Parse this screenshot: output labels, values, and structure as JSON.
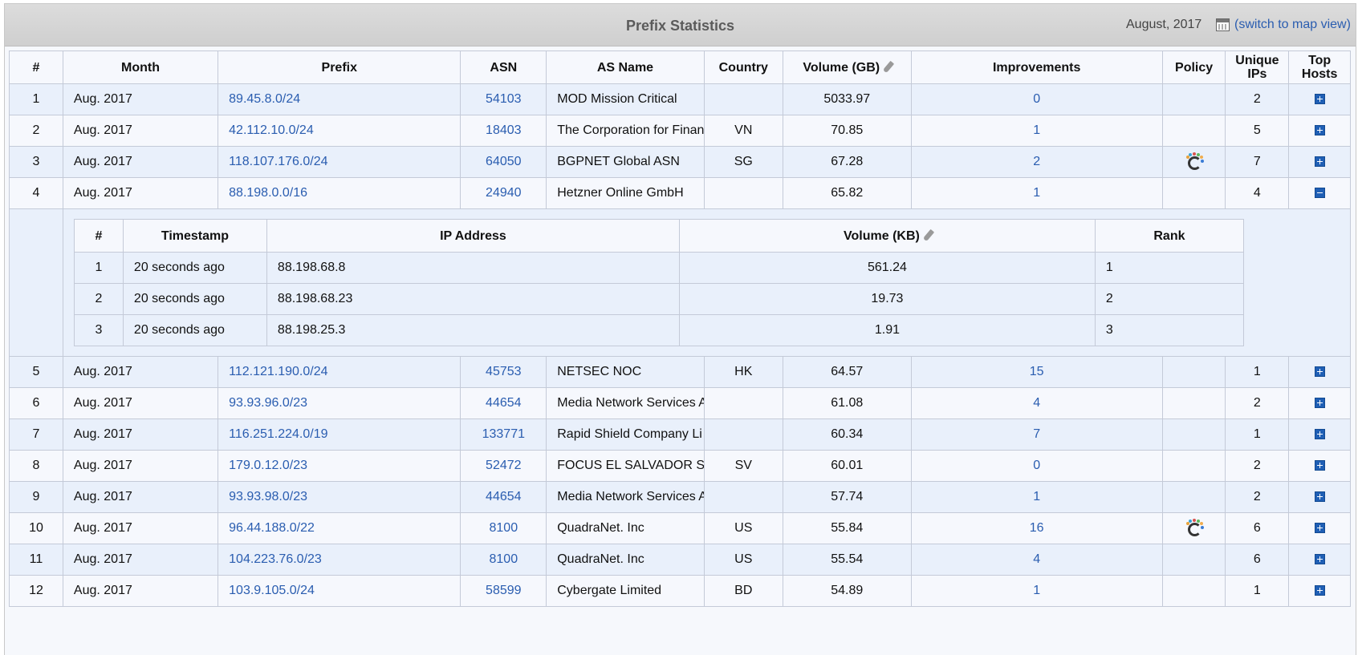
{
  "header": {
    "title": "Prefix Statistics",
    "date": "August, 2017",
    "map_link": "(switch to map view)",
    "calendar_icon": "calendar-icon"
  },
  "columns": {
    "num": "#",
    "month": "Month",
    "prefix": "Prefix",
    "asn": "ASN",
    "as_name": "AS Name",
    "country": "Country",
    "volume": "Volume (GB)",
    "improvements": "Improvements",
    "policy": "Policy",
    "unique_ips_1": "Unique",
    "unique_ips_2": "IPs",
    "top_hosts_1": "Top",
    "top_hosts_2": "Hosts"
  },
  "rows": [
    {
      "num": "1",
      "month": "Aug. 2017",
      "prefix": "89.45.8.0/24",
      "asn": "54103",
      "as_name": "MOD Mission Critical",
      "country": "",
      "volume": "5033.97",
      "improvements": "0",
      "policy": false,
      "unique_ips": "2",
      "hosts_state": "collapsed"
    },
    {
      "num": "2",
      "month": "Aug. 2017",
      "prefix": "42.112.10.0/24",
      "asn": "18403",
      "as_name": "The Corporation for Finan",
      "country": "VN",
      "volume": "70.85",
      "improvements": "1",
      "policy": false,
      "unique_ips": "5",
      "hosts_state": "collapsed"
    },
    {
      "num": "3",
      "month": "Aug. 2017",
      "prefix": "118.107.176.0/24",
      "asn": "64050",
      "as_name": "BGPNET Global ASN",
      "country": "SG",
      "volume": "67.28",
      "improvements": "2",
      "policy": true,
      "unique_ips": "7",
      "hosts_state": "collapsed"
    },
    {
      "num": "4",
      "month": "Aug. 2017",
      "prefix": "88.198.0.0/16",
      "asn": "24940",
      "as_name": "Hetzner Online GmbH",
      "country": "",
      "volume": "65.82",
      "improvements": "1",
      "policy": false,
      "unique_ips": "4",
      "hosts_state": "expanded"
    },
    {
      "num": "5",
      "month": "Aug. 2017",
      "prefix": "112.121.190.0/24",
      "asn": "45753",
      "as_name": "NETSEC NOC",
      "country": "HK",
      "volume": "64.57",
      "improvements": "15",
      "policy": false,
      "unique_ips": "1",
      "hosts_state": "collapsed"
    },
    {
      "num": "6",
      "month": "Aug. 2017",
      "prefix": "93.93.96.0/23",
      "asn": "44654",
      "as_name": "Media Network Services A",
      "country": "",
      "volume": "61.08",
      "improvements": "4",
      "policy": false,
      "unique_ips": "2",
      "hosts_state": "collapsed"
    },
    {
      "num": "7",
      "month": "Aug. 2017",
      "prefix": "116.251.224.0/19",
      "asn": "133771",
      "as_name": "Rapid Shield Company Li",
      "country": "",
      "volume": "60.34",
      "improvements": "7",
      "policy": false,
      "unique_ips": "1",
      "hosts_state": "collapsed"
    },
    {
      "num": "8",
      "month": "Aug. 2017",
      "prefix": "179.0.12.0/23",
      "asn": "52472",
      "as_name": "FOCUS EL SALVADOR S",
      "country": "SV",
      "volume": "60.01",
      "improvements": "0",
      "policy": false,
      "unique_ips": "2",
      "hosts_state": "collapsed"
    },
    {
      "num": "9",
      "month": "Aug. 2017",
      "prefix": "93.93.98.0/23",
      "asn": "44654",
      "as_name": "Media Network Services A",
      "country": "",
      "volume": "57.74",
      "improvements": "1",
      "policy": false,
      "unique_ips": "2",
      "hosts_state": "collapsed"
    },
    {
      "num": "10",
      "month": "Aug. 2017",
      "prefix": "96.44.188.0/22",
      "asn": "8100",
      "as_name": "QuadraNet. Inc",
      "country": "US",
      "volume": "55.84",
      "improvements": "16",
      "policy": true,
      "unique_ips": "6",
      "hosts_state": "collapsed"
    },
    {
      "num": "11",
      "month": "Aug. 2017",
      "prefix": "104.223.76.0/23",
      "asn": "8100",
      "as_name": "QuadraNet. Inc",
      "country": "US",
      "volume": "55.54",
      "improvements": "4",
      "policy": false,
      "unique_ips": "6",
      "hosts_state": "collapsed"
    },
    {
      "num": "12",
      "month": "Aug. 2017",
      "prefix": "103.9.105.0/24",
      "asn": "58599",
      "as_name": "Cybergate Limited",
      "country": "BD",
      "volume": "54.89",
      "improvements": "1",
      "policy": false,
      "unique_ips": "1",
      "hosts_state": "collapsed"
    }
  ],
  "detail": {
    "after_row": "4",
    "columns": {
      "num": "#",
      "timestamp": "Timestamp",
      "ip": "IP Address",
      "volume": "Volume (KB)",
      "rank": "Rank"
    },
    "rows": [
      {
        "num": "1",
        "timestamp": "20 seconds ago",
        "ip": "88.198.68.8",
        "volume": "561.24",
        "rank": "1"
      },
      {
        "num": "2",
        "timestamp": "20 seconds ago",
        "ip": "88.198.68.23",
        "volume": "19.73",
        "rank": "2"
      },
      {
        "num": "3",
        "timestamp": "20 seconds ago",
        "ip": "88.198.25.3",
        "volume": "1.91",
        "rank": "3"
      }
    ]
  },
  "icons": {
    "edit": "pencil-icon",
    "expand": "plus-box-icon",
    "collapse": "minus-box-icon",
    "policy": "policy-icon"
  },
  "colors": {
    "link": "#2a5db0",
    "row_alt": "#e9f0fb",
    "row_base": "#f6f8fd",
    "header_bar": "#d3d3d3",
    "button": "#1f5fb5"
  }
}
